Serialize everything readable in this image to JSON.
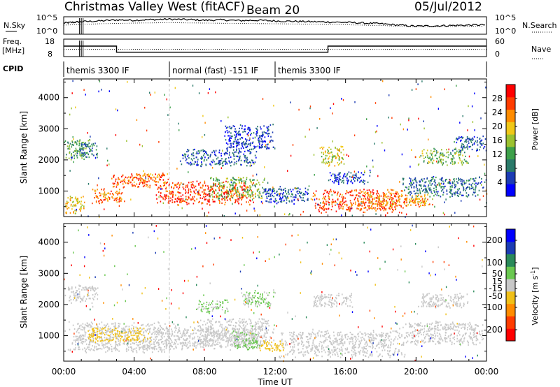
{
  "header": {
    "station": "Christmas Valley West (fitACF)",
    "beam": "Beam 20",
    "date": "05/Jul/2012"
  },
  "strip_labels": {
    "nsky": "N.Sky",
    "nsearch": "N.Search",
    "freq": "Freq.",
    "freq_unit": "[MHz]",
    "nave": "Nave",
    "cpid": "CPID",
    "nsky_ticks": [
      "10^5",
      "10^0"
    ],
    "nsky_ticks_right": [
      "10^5",
      "10^0"
    ],
    "freq_ticks": [
      "18",
      "8"
    ],
    "nave_ticks": [
      "60",
      "0"
    ]
  },
  "cpid_segments": [
    {
      "label": "themis 3300 IF",
      "start_hour": 0,
      "end_hour": 6
    },
    {
      "label": "normal (fast) -151 IF",
      "start_hour": 6,
      "end_hour": 12
    },
    {
      "label": "themis 3300 IF",
      "start_hour": 12,
      "end_hour": 24
    }
  ],
  "chart_data": [
    {
      "type": "line",
      "name": "noise",
      "xlim": [
        0,
        24
      ],
      "ylim": [
        0,
        5
      ],
      "series": [
        {
          "name": "N.Sky",
          "x": [
            0,
            0.5,
            1,
            2,
            3,
            4,
            5,
            6,
            7,
            8,
            9,
            10,
            11,
            12,
            13,
            14,
            15,
            16,
            17,
            18,
            19,
            20,
            21,
            22,
            23,
            24
          ],
          "y": [
            3.2,
            3.4,
            3.6,
            3.8,
            4.1,
            4.0,
            4.2,
            4.3,
            4.2,
            4.0,
            4.1,
            3.9,
            4.0,
            3.8,
            3.7,
            3.6,
            3.5,
            3.4,
            3.2,
            3.0,
            2.6,
            2.3,
            2.4,
            2.5,
            2.6,
            2.7
          ]
        },
        {
          "name": "N.Search",
          "x": [
            0,
            2,
            4,
            6,
            8,
            10,
            12,
            14,
            16,
            18,
            20,
            22,
            24
          ],
          "y": [
            2.6,
            3.0,
            3.2,
            3.3,
            3.2,
            3.1,
            3.0,
            2.9,
            2.7,
            2.5,
            2.1,
            2.2,
            2.3
          ]
        }
      ]
    },
    {
      "type": "line",
      "name": "frequency",
      "xlim": [
        0,
        24
      ],
      "series": [
        {
          "name": "Freq.",
          "x": [
            0,
            3,
            3,
            15,
            15,
            24
          ],
          "y": [
            14,
            14,
            10.5,
            10.5,
            14,
            14
          ]
        },
        {
          "name": "Nave",
          "x": [
            0,
            24
          ],
          "y": [
            25,
            25
          ]
        }
      ]
    },
    {
      "type": "heatmap",
      "name": "power",
      "xlabel": "",
      "ylabel": "Slant Range [km]",
      "xlim": [
        0,
        24
      ],
      "ylim": [
        180,
        4600
      ],
      "y_ticks": [
        1000,
        2000,
        3000,
        4000
      ],
      "colorbar_label": "Power [dB]",
      "colorbar_ticks": [
        4,
        8,
        12,
        16,
        20,
        24,
        28
      ],
      "colorbar_range": [
        0,
        32
      ],
      "colors": [
        "#0000ff",
        "#1c3cb4",
        "#2a7a6a",
        "#3da04a",
        "#9cc230",
        "#f0c818",
        "#ff8c00",
        "#ff3c00",
        "#ff0000"
      ],
      "bands": [
        {
          "x0": 0.0,
          "x1": 1.5,
          "y0": 2000,
          "y1": 2700,
          "value": 12
        },
        {
          "x0": 0.8,
          "x1": 2.0,
          "y0": 2100,
          "y1": 2600,
          "value": 9
        },
        {
          "x0": 0.0,
          "x1": 1.2,
          "y0": 250,
          "y1": 900,
          "value": 20
        },
        {
          "x0": 1.5,
          "x1": 3.5,
          "y0": 600,
          "y1": 1100,
          "value": 25
        },
        {
          "x0": 2.5,
          "x1": 5.0,
          "y0": 1100,
          "y1": 1600,
          "value": 26
        },
        {
          "x0": 4.0,
          "x1": 6.2,
          "y0": 1250,
          "y1": 1600,
          "value": 24
        },
        {
          "x0": 5.0,
          "x1": 11.0,
          "y0": 550,
          "y1": 1350,
          "value": 27
        },
        {
          "x0": 8.0,
          "x1": 11.5,
          "y0": 750,
          "y1": 1500,
          "value": 14
        },
        {
          "x0": 6.5,
          "x1": 11.0,
          "y0": 1800,
          "y1": 2400,
          "value": 6
        },
        {
          "x0": 9.0,
          "x1": 12.0,
          "y0": 2300,
          "y1": 3200,
          "value": 5
        },
        {
          "x0": 11.0,
          "x1": 14.0,
          "y0": 600,
          "y1": 1200,
          "value": 6
        },
        {
          "x0": 14.0,
          "x1": 19.5,
          "y0": 300,
          "y1": 1100,
          "value": 26
        },
        {
          "x0": 17.0,
          "x1": 21.0,
          "y0": 500,
          "y1": 950,
          "value": 22
        },
        {
          "x0": 14.5,
          "x1": 16.0,
          "y0": 1800,
          "y1": 2500,
          "value": 18
        },
        {
          "x0": 15.0,
          "x1": 17.5,
          "y0": 1200,
          "y1": 1700,
          "value": 5
        },
        {
          "x0": 19.0,
          "x1": 24.0,
          "y0": 800,
          "y1": 1500,
          "value": 8
        },
        {
          "x0": 20.0,
          "x1": 23.0,
          "y0": 1850,
          "y1": 2400,
          "value": 14
        },
        {
          "x0": 22.0,
          "x1": 24.0,
          "y0": 2300,
          "y1": 2800,
          "value": 6
        }
      ]
    },
    {
      "type": "heatmap",
      "name": "velocity",
      "xlabel": "Time UT",
      "ylabel": "Slant Range [km]",
      "xlim": [
        0,
        24
      ],
      "ylim": [
        180,
        4600
      ],
      "x_tick_labels": [
        "00:00",
        "04:00",
        "08:00",
        "12:00",
        "16:00",
        "20:00",
        "00:00"
      ],
      "y_ticks": [
        1000,
        2000,
        3000,
        4000
      ],
      "colorbar_label": "Velocity [m s^-1]",
      "colorbar_ticks": [
        -200,
        -100,
        -50,
        -15,
        15,
        50,
        100,
        200
      ],
      "colorbar_range": [
        -250,
        250
      ],
      "colors": [
        "#ff0000",
        "#ff3c00",
        "#ff8c00",
        "#f0c018",
        "#c8c8c8",
        "#6ac850",
        "#2a8a5a",
        "#1c3cb4",
        "#0000ff"
      ],
      "bands": [
        {
          "x0": 0.0,
          "x1": 2.0,
          "y0": 2050,
          "y1": 2650,
          "value": 0
        },
        {
          "x0": 0.0,
          "x1": 6.5,
          "y0": 450,
          "y1": 1500,
          "value": 0
        },
        {
          "x0": 5.0,
          "x1": 11.5,
          "y0": 550,
          "y1": 1350,
          "value": 0
        },
        {
          "x0": 7.5,
          "x1": 12.0,
          "y0": 700,
          "y1": 1600,
          "value": 0
        },
        {
          "x0": 9.5,
          "x1": 11.2,
          "y0": 550,
          "y1": 1200,
          "value": 30
        },
        {
          "x0": 7.5,
          "x1": 9.5,
          "y0": 1700,
          "y1": 2200,
          "value": 30
        },
        {
          "x0": 10.0,
          "x1": 12.0,
          "y0": 1900,
          "y1": 2500,
          "value": 30
        },
        {
          "x0": 12.0,
          "x1": 19.5,
          "y0": 300,
          "y1": 1200,
          "value": 0
        },
        {
          "x0": 14.0,
          "x1": 16.5,
          "y0": 1900,
          "y1": 2400,
          "value": 0
        },
        {
          "x0": 19.0,
          "x1": 24.0,
          "y0": 700,
          "y1": 1500,
          "value": 0
        },
        {
          "x0": 20.0,
          "x1": 23.0,
          "y0": 1900,
          "y1": 2400,
          "value": 0
        },
        {
          "x0": 1.0,
          "x1": 5.0,
          "y0": 800,
          "y1": 1300,
          "value": -35
        },
        {
          "x0": 11.0,
          "x1": 12.5,
          "y0": 500,
          "y1": 900,
          "value": -60
        }
      ]
    }
  ]
}
